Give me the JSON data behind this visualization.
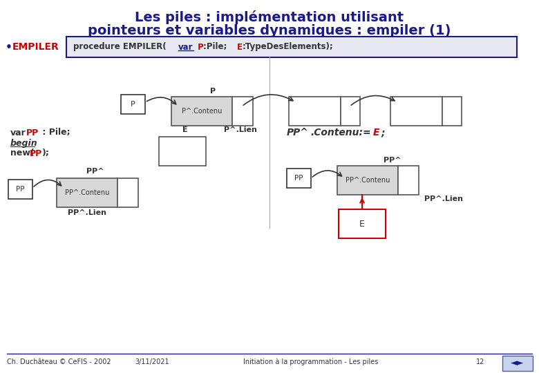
{
  "title_line1": "Les piles : implémentation utilisant",
  "title_line2": "pointeurs et variables dynamiques : empiler (1)",
  "title_color": "#1a1a8c",
  "bg_color": "#ffffff",
  "footer_left": "Ch. Duchâteau © CeFIS - 2002",
  "footer_mid": "3/11/2021",
  "footer_right": "Initiation à la programmation - Les piles",
  "footer_page": "12",
  "dark_blue": "#1a1a8c",
  "red": "#cc0000",
  "code_bg": "#e8e8f0"
}
